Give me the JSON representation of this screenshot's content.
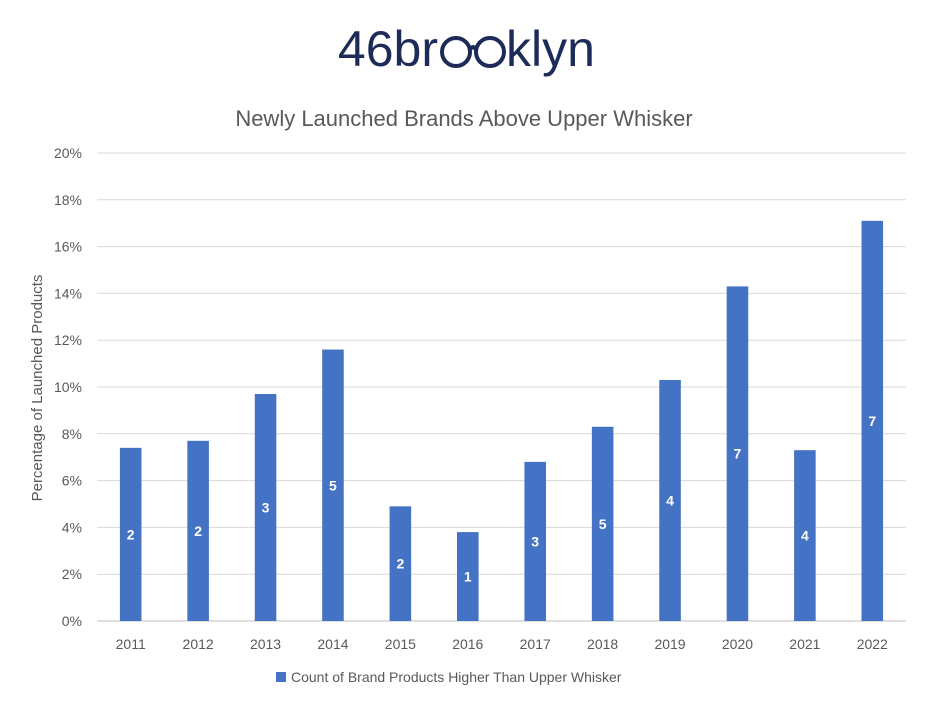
{
  "logo": {
    "text_left": "46br",
    "text_right": "klyn",
    "color": "#1c2b57"
  },
  "chart_data": {
    "type": "bar",
    "title": "Newly Launched Brands Above Upper Whisker",
    "xlabel": "",
    "ylabel": "Percentage of Launched Products",
    "ylim": [
      0,
      20
    ],
    "yticks": [
      "0%",
      "2%",
      "4%",
      "6%",
      "8%",
      "10%",
      "12%",
      "14%",
      "16%",
      "18%",
      "20%"
    ],
    "grid": true,
    "legend_position": "bottom",
    "categories": [
      "2011",
      "2012",
      "2013",
      "2014",
      "2015",
      "2016",
      "2017",
      "2018",
      "2019",
      "2020",
      "2021",
      "2022"
    ],
    "series": [
      {
        "name": "Count of Brand Products Higher Than Upper Whisker",
        "color": "#4472c4",
        "values": [
          7.4,
          7.7,
          9.7,
          11.6,
          4.9,
          3.8,
          6.8,
          8.3,
          10.3,
          14.3,
          7.3,
          17.1
        ],
        "labels": [
          "2",
          "2",
          "3",
          "5",
          "2",
          "1",
          "3",
          "5",
          "4",
          "7",
          "4",
          "7"
        ]
      }
    ]
  }
}
